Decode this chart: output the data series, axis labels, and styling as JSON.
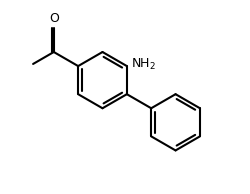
{
  "bg_color": "#ffffff",
  "line_color": "#000000",
  "line_width": 1.5,
  "ring_r": 1.0,
  "xlim": [
    -3.2,
    4.8
  ],
  "ylim": [
    -4.0,
    2.8
  ],
  "nh2_fontsize": 9,
  "o_fontsize": 9
}
